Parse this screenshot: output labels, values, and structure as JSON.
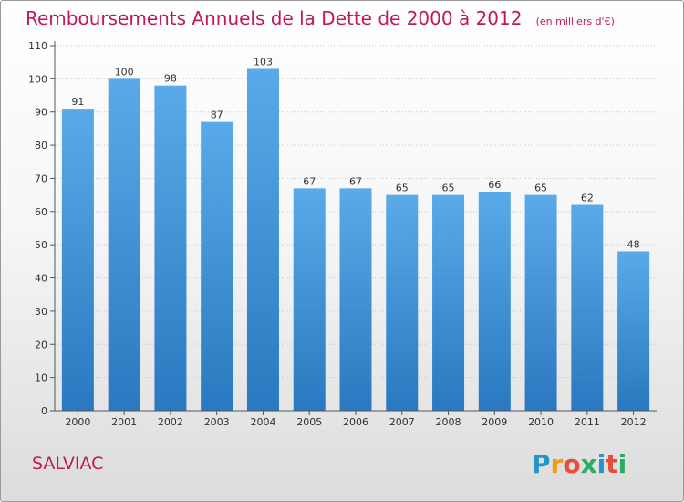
{
  "chart_data": {
    "type": "bar",
    "title": "Remboursements Annuels de la Dette de 2000 à 2012",
    "subtitle": "(en milliers d'€)",
    "categories": [
      "2000",
      "2001",
      "2002",
      "2003",
      "2004",
      "2005",
      "2006",
      "2007",
      "2008",
      "2009",
      "2010",
      "2011",
      "2012"
    ],
    "values": [
      91,
      100,
      98,
      87,
      103,
      67,
      67,
      65,
      65,
      66,
      65,
      62,
      48
    ],
    "ylim": [
      0,
      110
    ],
    "yticks": [
      0,
      10,
      20,
      30,
      40,
      50,
      60,
      70,
      80,
      90,
      100,
      110
    ],
    "grid": true,
    "bar_color": "#3a8fd8"
  },
  "place": "SALVIAC",
  "logo": {
    "letters": [
      "P",
      "r",
      "o",
      "x",
      "i",
      "t",
      "i"
    ],
    "colors": [
      "#2196c8",
      "#f39c12",
      "#e74c3c",
      "#27ae60",
      "#2196c8",
      "#e74c3c",
      "#27ae60"
    ]
  }
}
